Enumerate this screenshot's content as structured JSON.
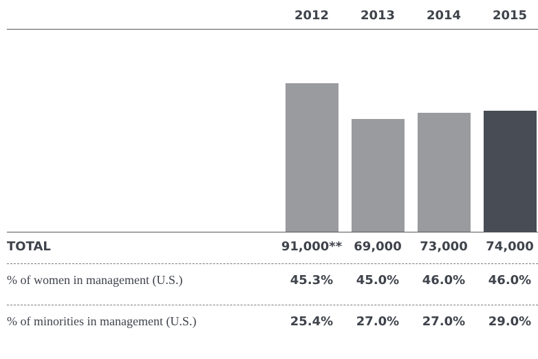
{
  "chart_data": {
    "type": "bar",
    "categories": [
      "2012",
      "2013",
      "2014",
      "2015"
    ],
    "values": [
      91000,
      69000,
      73000,
      74000
    ],
    "value_labels": [
      "91,000**",
      "69,000",
      "73,000",
      "74,000"
    ],
    "colors": [
      "#9a9b9f",
      "#9a9b9f",
      "#9a9b9f",
      "#484c54"
    ],
    "total_label": "TOTAL"
  },
  "table": {
    "rows": [
      {
        "label": "% of women in management (U.S.)",
        "values": [
          "45.3%",
          "45.0%",
          "46.0%",
          "46.0%"
        ]
      },
      {
        "label": "% of minorities in management (U.S.)",
        "values": [
          "25.4%",
          "27.0%",
          "27.0%",
          "29.0%"
        ]
      }
    ]
  }
}
